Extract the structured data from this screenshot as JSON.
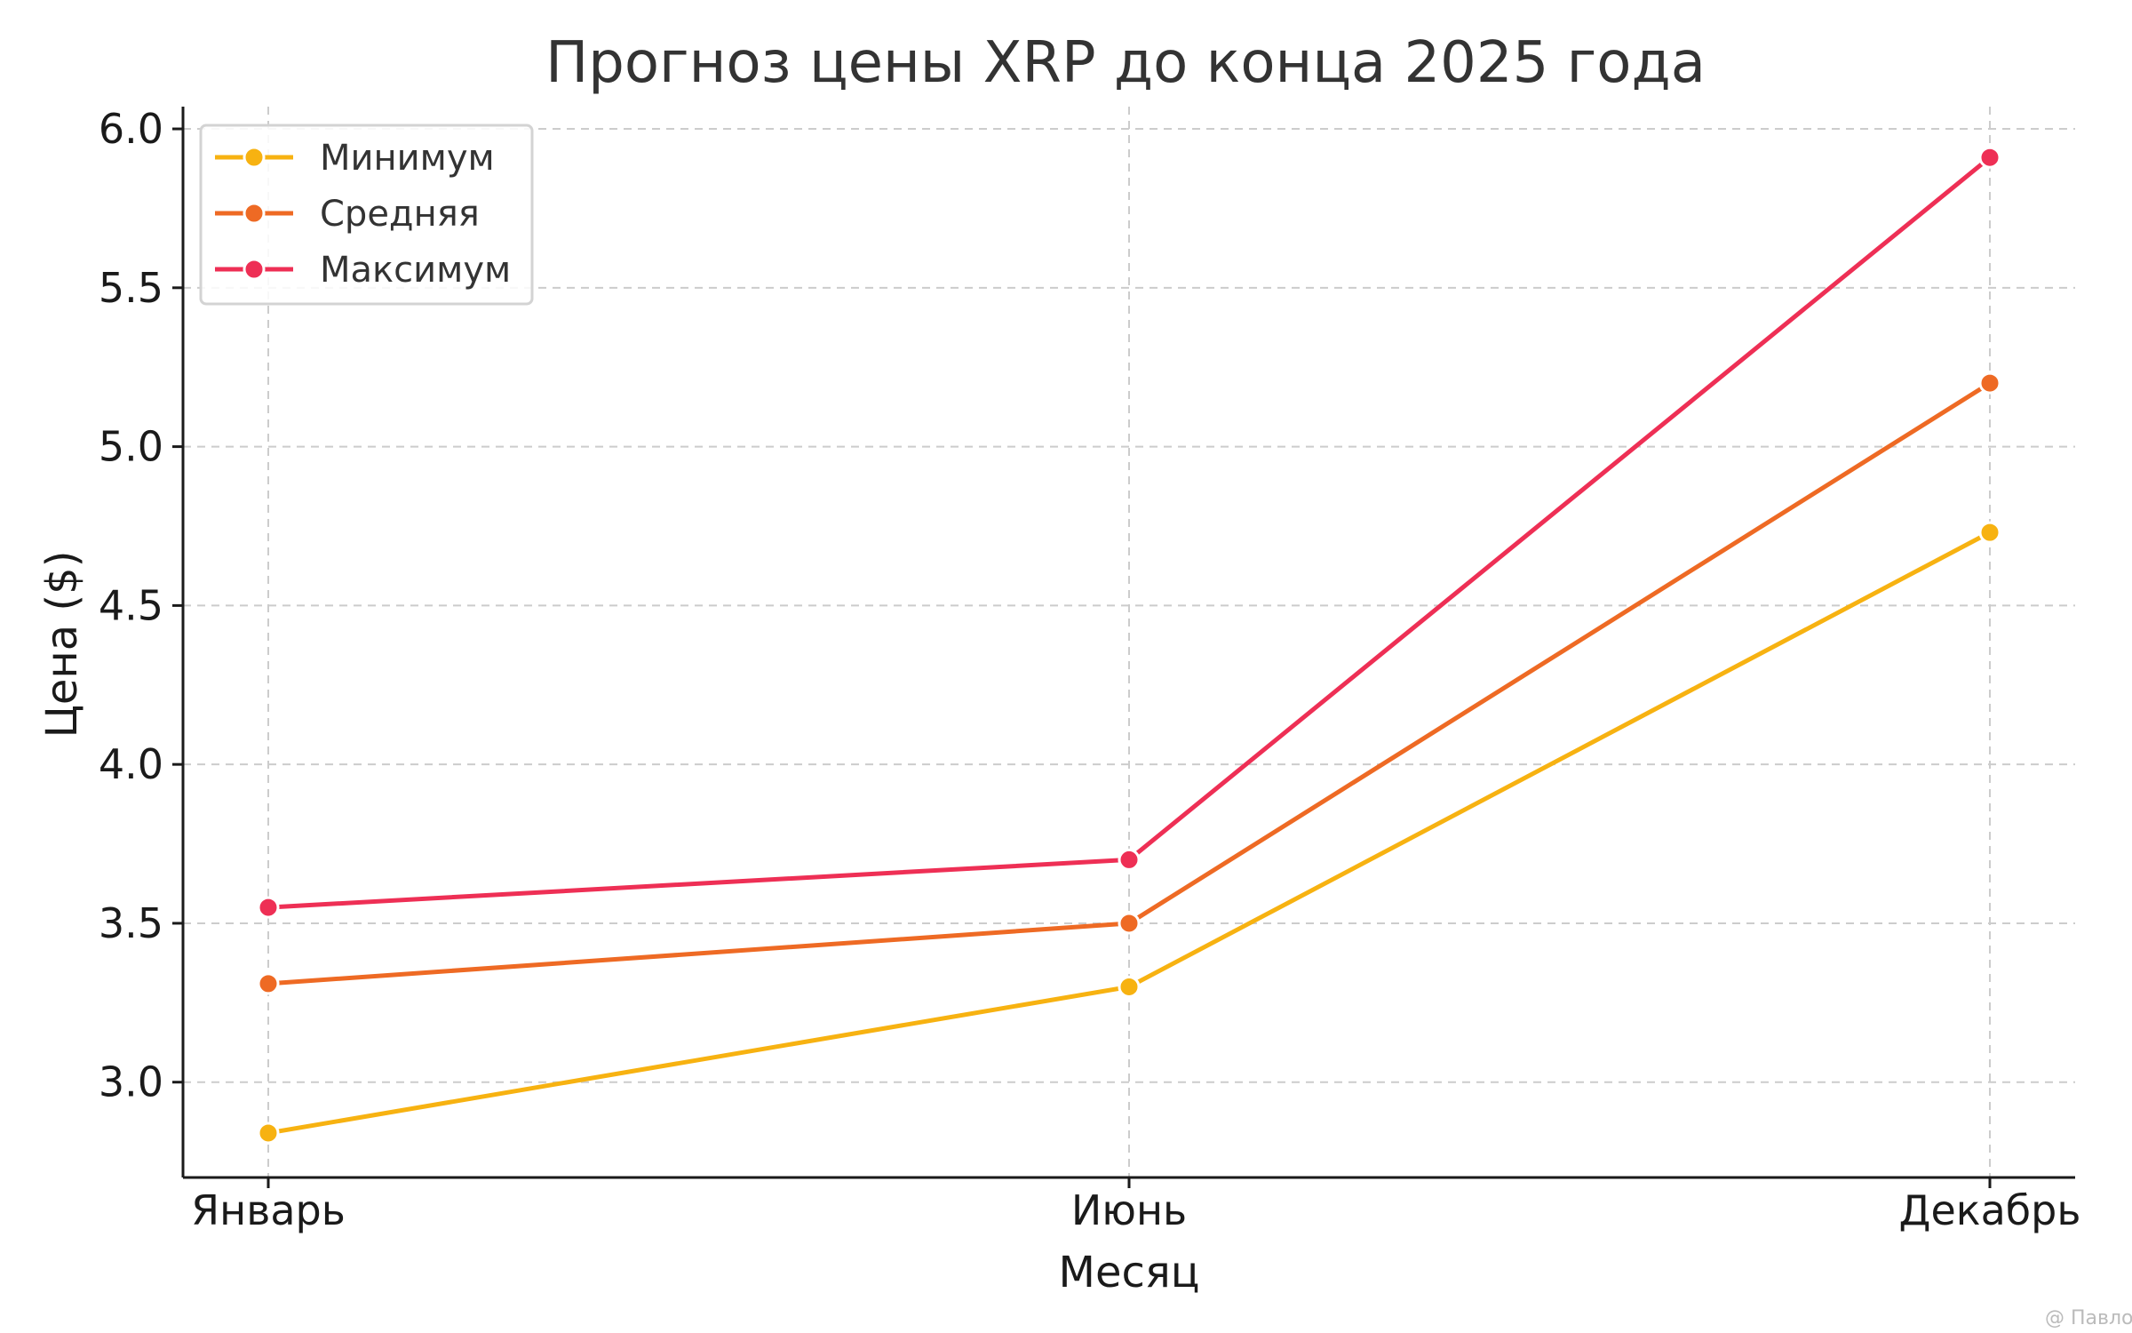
{
  "chart_data": {
    "type": "line",
    "title": "Прогноз цены XRP до конца 2025 года",
    "xlabel": "Месяц",
    "ylabel": "Цена ($)",
    "categories": [
      "Январь",
      "Июнь",
      "Декабрь"
    ],
    "ylim": [
      2.7,
      6.07
    ],
    "yticks": [
      "3.0",
      "3.5",
      "4.0",
      "4.5",
      "5.0",
      "5.5",
      "6.0"
    ],
    "grid": true,
    "legend_position": "top-left",
    "series": [
      {
        "name": "Минимум",
        "color": "#F7B211",
        "values": [
          2.84,
          3.3,
          4.73
        ]
      },
      {
        "name": "Средняя",
        "color": "#EE6A24",
        "values": [
          3.31,
          3.5,
          5.2
        ]
      },
      {
        "name": "Максимум",
        "color": "#EE2F55",
        "values": [
          3.55,
          3.7,
          5.91
        ]
      }
    ]
  },
  "watermark": "@ Павло"
}
